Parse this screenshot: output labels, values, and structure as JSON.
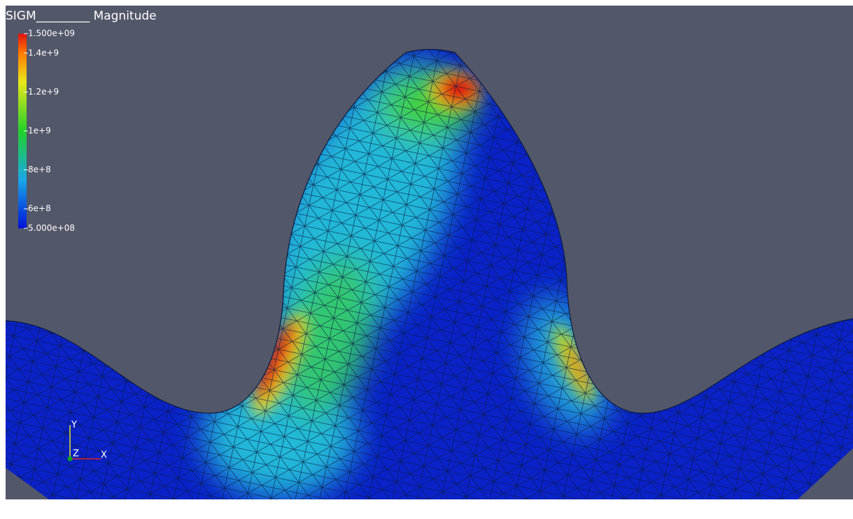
{
  "title": "SIGM_________ Magnitude",
  "colorbar": {
    "ticks": [
      {
        "value": 1500000000,
        "label": "1.500e+09"
      },
      {
        "value": 1400000000,
        "label": "1.4e+9"
      },
      {
        "value": 1200000000,
        "label": "1.2e+9"
      },
      {
        "value": 1000000000,
        "label": "1e+9"
      },
      {
        "value": 800000000,
        "label": "8e+8"
      },
      {
        "value": 600000000,
        "label": "6e+8"
      },
      {
        "value": 500000000,
        "label": "5.000e+08"
      }
    ]
  },
  "axes": {
    "y": "Y",
    "z": "Z",
    "x": "X"
  }
}
